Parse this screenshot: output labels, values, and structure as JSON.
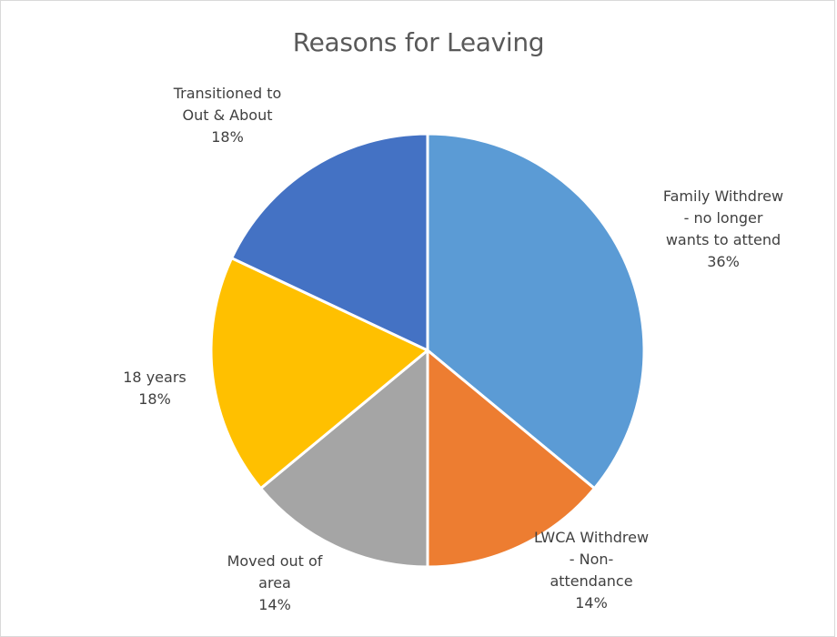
{
  "chart_data": {
    "type": "pie",
    "title": "Reasons for Leaving",
    "categories": [
      "Family Withdrew - no longer wants to attend",
      "LWCA Withdrew - Non-attendance",
      "Moved out of area",
      "18 years",
      "Transitioned to Out & About"
    ],
    "values": [
      36,
      14,
      14,
      18,
      18
    ],
    "unit": "%",
    "colors": [
      "#5B9BD5",
      "#ED7D31",
      "#A5A5A5",
      "#FFC000",
      "#4472C4"
    ],
    "slices": [
      {
        "label_lines": [
          "Family Withdrew",
          "- no longer",
          "wants to attend"
        ],
        "pct_text": "36%"
      },
      {
        "label_lines": [
          "LWCA Withdrew",
          "- Non-",
          "attendance"
        ],
        "pct_text": "14%"
      },
      {
        "label_lines": [
          "Moved out of",
          "area"
        ],
        "pct_text": "14%"
      },
      {
        "label_lines": [
          "18 years"
        ],
        "pct_text": "18%"
      },
      {
        "label_lines": [
          "Transitioned to",
          "Out & About"
        ],
        "pct_text": "18%"
      }
    ],
    "legend": "none",
    "data_labels": "outside"
  }
}
